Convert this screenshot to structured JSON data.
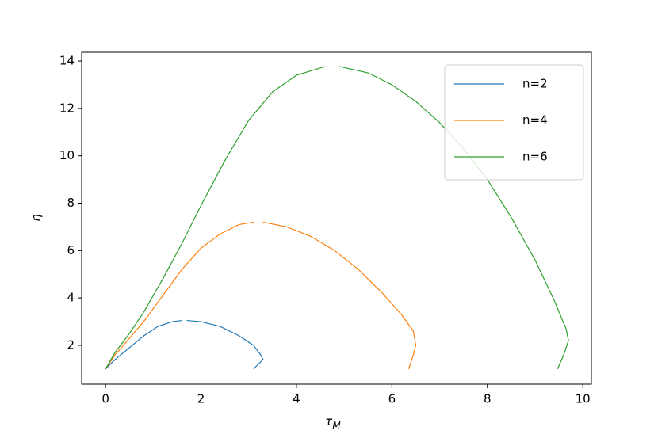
{
  "chart_data": {
    "type": "line",
    "x_label": "τ",
    "x_label_subscript": "M",
    "y_label": "η",
    "xlim": [
      -0.5,
      10.18
    ],
    "ylim": [
      0.36,
      14.37
    ],
    "xticks": [
      0,
      2,
      4,
      6,
      8,
      10
    ],
    "yticks": [
      2,
      4,
      6,
      8,
      10,
      12,
      14
    ],
    "legend": "upper right",
    "series": [
      {
        "name": "n=2",
        "color": "#1f77b4",
        "x": [
          0,
          0.2,
          0.5,
          0.8,
          1.1,
          1.4,
          1.6,
          null,
          1.7,
          2.0,
          2.4,
          2.8,
          3.1,
          3.25,
          3.3,
          3.2,
          3.1
        ],
        "values": [
          1,
          1.4,
          1.9,
          2.4,
          2.8,
          3.0,
          3.05,
          null,
          3.05,
          3.0,
          2.8,
          2.4,
          2.0,
          1.6,
          1.4,
          1.2,
          1.0
        ]
      },
      {
        "name": "n=4",
        "color": "#ff7f0e",
        "x": [
          0,
          0.2,
          0.5,
          0.8,
          1.2,
          1.6,
          2.0,
          2.4,
          2.8,
          3.1,
          null,
          3.3,
          3.8,
          4.3,
          4.8,
          5.3,
          5.8,
          6.2,
          6.45,
          6.5,
          6.45,
          6.35
        ],
        "values": [
          1,
          1.6,
          2.3,
          3.0,
          4.1,
          5.2,
          6.1,
          6.7,
          7.1,
          7.2,
          null,
          7.2,
          7.0,
          6.6,
          6.0,
          5.2,
          4.2,
          3.3,
          2.6,
          2.0,
          1.6,
          1.0
        ]
      },
      {
        "name": "n=6",
        "color": "#2ca02c",
        "x": [
          0,
          0.2,
          0.5,
          0.8,
          1.2,
          1.6,
          2.0,
          2.5,
          3.0,
          3.5,
          4.0,
          4.6,
          null,
          4.9,
          5.5,
          6.0,
          6.5,
          7.0,
          7.5,
          8.0,
          8.5,
          9.0,
          9.4,
          9.65,
          9.7,
          9.6,
          9.47
        ],
        "values": [
          1,
          1.7,
          2.5,
          3.4,
          4.8,
          6.3,
          7.9,
          9.8,
          11.5,
          12.7,
          13.4,
          13.77,
          null,
          13.77,
          13.5,
          13.0,
          12.3,
          11.4,
          10.3,
          9.0,
          7.4,
          5.6,
          3.9,
          2.7,
          2.2,
          1.6,
          1.0
        ]
      }
    ]
  }
}
